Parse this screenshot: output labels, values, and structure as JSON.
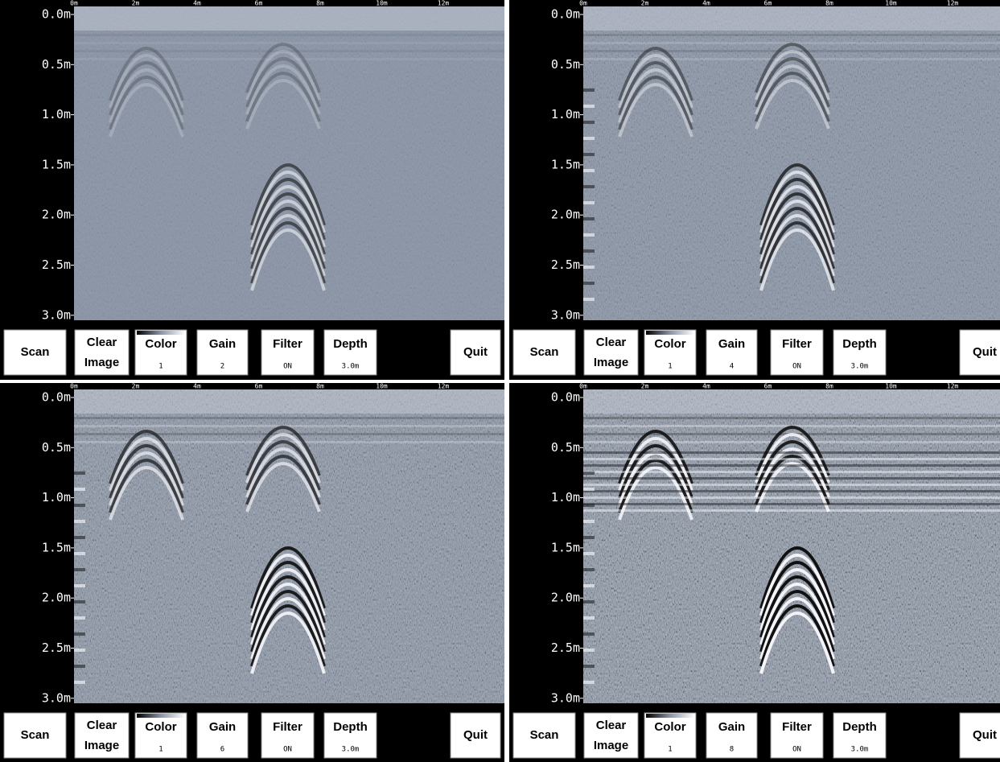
{
  "axis": {
    "x_labels": [
      "0m",
      "2m",
      "4m",
      "6m",
      "8m",
      "10m",
      "12m"
    ],
    "depth_labels": [
      "0.0m",
      "0.5m",
      "1.0m",
      "1.5m",
      "2.0m",
      "2.5m",
      "3.0m"
    ]
  },
  "buttons": {
    "scan": "Scan",
    "clear": [
      "Clear",
      "Image"
    ],
    "color": "Color",
    "color_value": "1",
    "gain": "Gain",
    "filter": "Filter",
    "filter_value": "ON",
    "depth": "Depth",
    "depth_value": "3.0m",
    "quit": "Quit"
  },
  "panels": [
    {
      "gain_value": "2"
    },
    {
      "gain_value": "4"
    },
    {
      "gain_value": "6"
    },
    {
      "gain_value": "8"
    }
  ]
}
